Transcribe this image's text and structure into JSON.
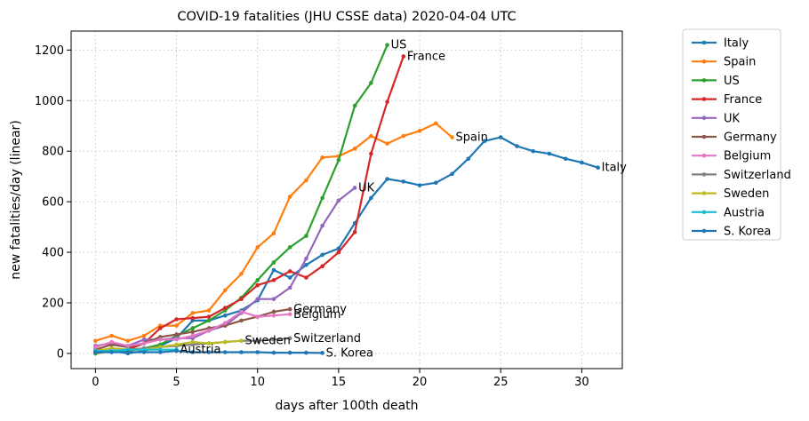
{
  "chart_data": {
    "type": "line",
    "title": "COVID-19 fatalities (JHU CSSE data) 2020-04-04 UTC",
    "xlabel": "days after 100th death",
    "ylabel": "new fatalities/day (linear)",
    "xlim": [
      -1.5,
      32.5
    ],
    "ylim": [
      -60,
      1275
    ],
    "xticks": [
      0,
      5,
      10,
      15,
      20,
      25,
      30
    ],
    "yticks": [
      0,
      200,
      400,
      600,
      800,
      1000,
      1200
    ],
    "grid": true,
    "legend_position": "outside-right",
    "series": [
      {
        "name": "Italy",
        "color": "#1f77b4",
        "end_label": "Italy",
        "x": [
          0,
          1,
          2,
          3,
          4,
          5,
          6,
          7,
          8,
          9,
          10,
          11,
          12,
          13,
          14,
          15,
          16,
          17,
          18,
          19,
          20,
          21,
          22,
          23,
          24,
          25,
          26,
          27,
          28,
          29,
          30,
          31
        ],
        "y": [
          0,
          10,
          0,
          10,
          30,
          60,
          130,
          130,
          150,
          170,
          210,
          330,
          300,
          350,
          390,
          415,
          515,
          615,
          690,
          680,
          665,
          675,
          710,
          770,
          840,
          855,
          820,
          800,
          790,
          770,
          755,
          735
        ]
      },
      {
        "name": "Spain",
        "color": "#ff7f0e",
        "end_label": "Spain",
        "x": [
          0,
          1,
          2,
          3,
          4,
          5,
          6,
          7,
          8,
          9,
          10,
          11,
          12,
          13,
          14,
          15,
          16,
          17,
          18,
          19,
          20,
          21,
          22
        ],
        "y": [
          50,
          70,
          50,
          70,
          110,
          110,
          160,
          170,
          250,
          315,
          420,
          475,
          620,
          685,
          775,
          780,
          810,
          860,
          830,
          860,
          880,
          910,
          855
        ]
      },
      {
        "name": "US",
        "color": "#2ca02c",
        "end_label": "US",
        "x": [
          0,
          1,
          2,
          3,
          4,
          5,
          6,
          7,
          8,
          9,
          10,
          11,
          12,
          13,
          14,
          15,
          16,
          17,
          18
        ],
        "y": [
          0,
          10,
          10,
          20,
          35,
          70,
          100,
          130,
          170,
          220,
          290,
          360,
          420,
          465,
          615,
          765,
          980,
          1070,
          1220
        ]
      },
      {
        "name": "France",
        "color": "#d62728",
        "end_label": "France",
        "x": [
          0,
          1,
          2,
          3,
          4,
          5,
          6,
          7,
          8,
          9,
          10,
          11,
          12,
          13,
          14,
          15,
          16,
          17,
          18,
          19
        ],
        "y": [
          5,
          20,
          15,
          40,
          100,
          135,
          140,
          145,
          180,
          215,
          270,
          290,
          325,
          300,
          345,
          400,
          480,
          790,
          995,
          1175
        ]
      },
      {
        "name": "UK",
        "color": "#9467bd",
        "end_label": "UK",
        "x": [
          0,
          1,
          2,
          3,
          4,
          5,
          6,
          7,
          8,
          9,
          10,
          11,
          12,
          13,
          14,
          15,
          16
        ],
        "y": [
          30,
          40,
          30,
          55,
          55,
          60,
          60,
          90,
          110,
          160,
          215,
          215,
          260,
          375,
          505,
          605,
          655
        ]
      },
      {
        "name": "Germany",
        "color": "#8c564b",
        "end_label": "Germany",
        "x": [
          0,
          1,
          2,
          3,
          4,
          5,
          6,
          7,
          8,
          9,
          10,
          11,
          12
        ],
        "y": [
          15,
          35,
          25,
          40,
          65,
          75,
          85,
          100,
          110,
          130,
          145,
          165,
          175
        ]
      },
      {
        "name": "Belgium",
        "color": "#e377c2",
        "end_label": "Belgium",
        "x": [
          0,
          1,
          2,
          3,
          4,
          5,
          6,
          7,
          8,
          9,
          10,
          11,
          12
        ],
        "y": [
          25,
          45,
          30,
          40,
          55,
          55,
          70,
          90,
          120,
          165,
          145,
          150,
          155
        ]
      },
      {
        "name": "Switzerland",
        "color": "#7f7f7f",
        "end_label": "Switzerland",
        "x": [
          0,
          1,
          2,
          3,
          4,
          5,
          6,
          7,
          8,
          9,
          10,
          11,
          12
        ],
        "y": [
          10,
          15,
          15,
          20,
          25,
          30,
          35,
          40,
          45,
          50,
          50,
          55,
          60
        ]
      },
      {
        "name": "Sweden",
        "color": "#bcbd22",
        "end_label": "Sweden",
        "x": [
          0,
          1,
          2,
          3,
          4,
          5,
          6,
          7,
          8,
          9
        ],
        "y": [
          10,
          20,
          15,
          15,
          25,
          35,
          45,
          40,
          45,
          50
        ]
      },
      {
        "name": "Austria",
        "color": "#17becf",
        "end_label": "Austria",
        "x": [
          0,
          1,
          2,
          3,
          4,
          5
        ],
        "y": [
          10,
          10,
          15,
          15,
          15,
          15
        ]
      },
      {
        "name": "S. Korea",
        "color": "#1f77b4",
        "end_label": "S. Korea",
        "x": [
          0,
          1,
          2,
          3,
          4,
          5,
          6,
          7,
          8,
          9,
          10,
          11,
          12,
          13,
          14
        ],
        "y": [
          5,
          5,
          5,
          5,
          5,
          10,
          5,
          5,
          5,
          5,
          5,
          3,
          3,
          3,
          2
        ]
      }
    ]
  }
}
